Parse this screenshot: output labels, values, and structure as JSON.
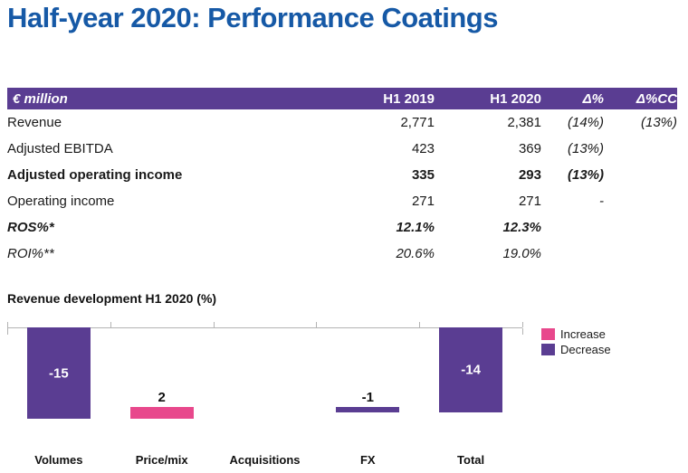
{
  "title": "Half-year 2020: Performance Coatings",
  "colors": {
    "title_blue": "#1659a6",
    "table_header_bg": "#5a3d92",
    "table_header_text": "#ffffff",
    "increase_pink": "#e8488c",
    "decrease_purple": "#5a3d92",
    "axis_gray": "#b3b3b3"
  },
  "table": {
    "headers": [
      {
        "label": "€ million",
        "italic": true
      },
      {
        "label": "H1 2019",
        "italic": false
      },
      {
        "label": "H1 2020",
        "italic": false
      },
      {
        "label": "Δ%",
        "italic": true
      },
      {
        "label": "Δ%CC",
        "italic": true
      }
    ],
    "rows": [
      {
        "label": "Revenue",
        "h1_2019": "2,771",
        "h1_2020": "2,381",
        "delta": "(14%)",
        "delta_cc": "(13%)",
        "style": "normal"
      },
      {
        "label": "Adjusted EBITDA",
        "h1_2019": "423",
        "h1_2020": "369",
        "delta": "(13%)",
        "delta_cc": "",
        "style": "normal"
      },
      {
        "label": "Adjusted operating income",
        "h1_2019": "335",
        "h1_2020": "293",
        "delta": "(13%)",
        "delta_cc": "",
        "style": "bold"
      },
      {
        "label": "Operating income",
        "h1_2019": "271",
        "h1_2020": "271",
        "delta": "-",
        "delta_cc": "",
        "style": "normal"
      },
      {
        "label": "ROS%*",
        "h1_2019": "12.1%",
        "h1_2020": "12.3%",
        "delta": "",
        "delta_cc": "",
        "style": "bold-italic"
      },
      {
        "label": "ROI%**",
        "h1_2019": "20.6%",
        "h1_2020": "19.0%",
        "delta": "",
        "delta_cc": "",
        "style": "italic"
      }
    ]
  },
  "chart_data": {
    "type": "bar",
    "subtype": "waterfall",
    "title": "Revenue development H1 2020 (%)",
    "categories": [
      "Volumes",
      "Price/mix",
      "Acquisitions",
      "FX",
      "Total"
    ],
    "values": [
      -15,
      2,
      0,
      -1,
      -14
    ],
    "bar_labels": [
      "-15",
      "2",
      "",
      "-1",
      "-14"
    ],
    "last_is_total": true,
    "baseline": 0,
    "ylim": [
      -15,
      0
    ],
    "grid": false,
    "legend_position": "right",
    "legend": [
      {
        "label": "Increase",
        "color": "#e8488c"
      },
      {
        "label": "Decrease",
        "color": "#5a3d92"
      }
    ]
  }
}
